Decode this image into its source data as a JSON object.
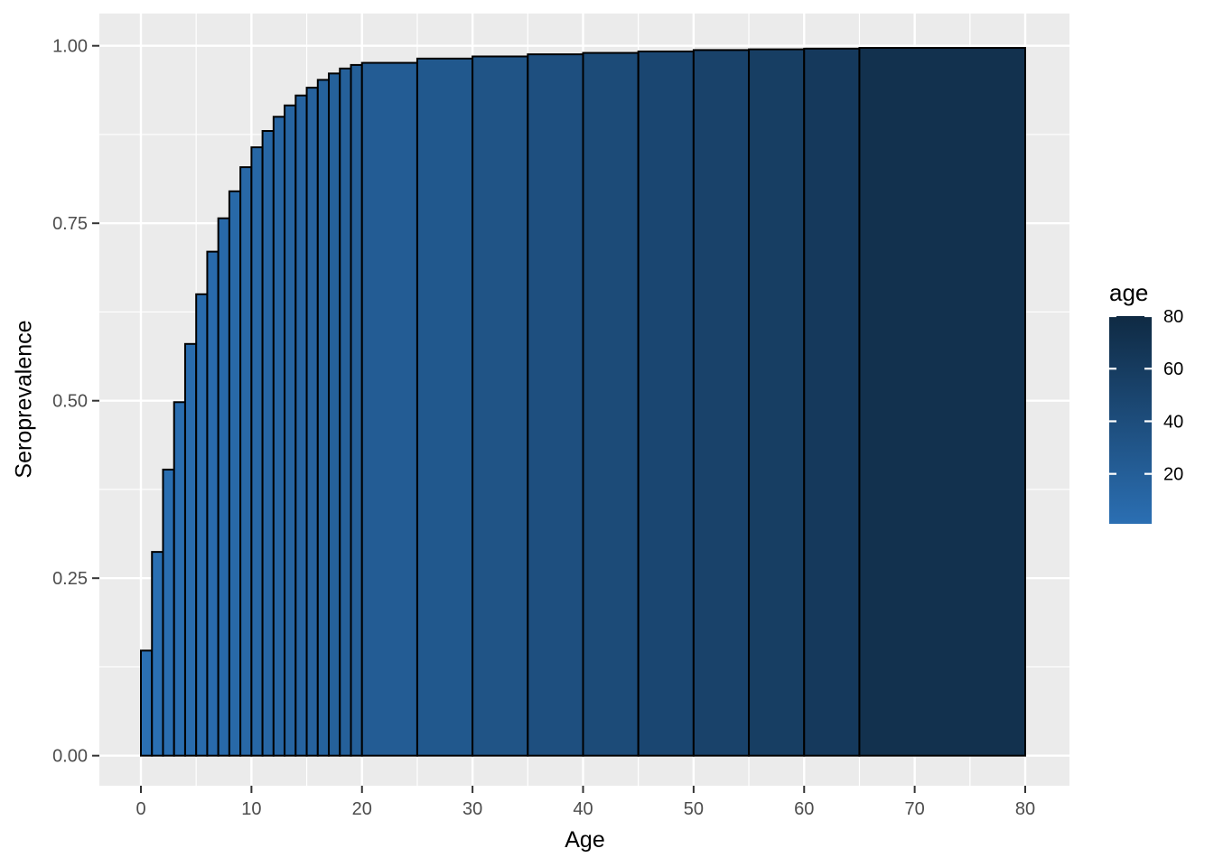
{
  "figure": {
    "background": "#FFFFFF",
    "panel_background": "#EBEBEB",
    "grid_color": "#FFFFFF",
    "bar_stroke_color": "#000000",
    "tick_mark_color": "#333333",
    "tick_label_color": "#4D4D4D",
    "axis_title_color": "#000000"
  },
  "chart_data": {
    "type": "bar",
    "title": "",
    "xlabel": "Age",
    "ylabel": "Seroprevalence",
    "xlim": [
      0,
      80
    ],
    "ylim": [
      0,
      1
    ],
    "grid": true,
    "x_ticks": [
      {
        "value": 0,
        "label": "0"
      },
      {
        "value": 10,
        "label": "10"
      },
      {
        "value": 20,
        "label": "20"
      },
      {
        "value": 30,
        "label": "30"
      },
      {
        "value": 40,
        "label": "40"
      },
      {
        "value": 50,
        "label": "50"
      },
      {
        "value": 60,
        "label": "60"
      },
      {
        "value": 70,
        "label": "70"
      },
      {
        "value": 80,
        "label": "80"
      }
    ],
    "y_ticks": [
      {
        "value": 0,
        "label": "0.00"
      },
      {
        "value": 0.25,
        "label": "0.25"
      },
      {
        "value": 0.5,
        "label": "0.50"
      },
      {
        "value": 0.75,
        "label": "0.75"
      },
      {
        "value": 1,
        "label": "1.00"
      }
    ],
    "x_minor_ticks": [
      5,
      15,
      25,
      35,
      45,
      55,
      65,
      75
    ],
    "y_minor_ticks": [
      0.125,
      0.375,
      0.625,
      0.875
    ],
    "bars": [
      {
        "x0": 0,
        "x1": 1,
        "value": 0.148
      },
      {
        "x0": 1,
        "x1": 2,
        "value": 0.287
      },
      {
        "x0": 2,
        "x1": 3,
        "value": 0.403
      },
      {
        "x0": 3,
        "x1": 4,
        "value": 0.498
      },
      {
        "x0": 4,
        "x1": 5,
        "value": 0.58
      },
      {
        "x0": 5,
        "x1": 6,
        "value": 0.65
      },
      {
        "x0": 6,
        "x1": 7,
        "value": 0.71
      },
      {
        "x0": 7,
        "x1": 8,
        "value": 0.757
      },
      {
        "x0": 8,
        "x1": 9,
        "value": 0.795
      },
      {
        "x0": 9,
        "x1": 10,
        "value": 0.829
      },
      {
        "x0": 10,
        "x1": 11,
        "value": 0.857
      },
      {
        "x0": 11,
        "x1": 12,
        "value": 0.88
      },
      {
        "x0": 12,
        "x1": 13,
        "value": 0.9
      },
      {
        "x0": 13,
        "x1": 14,
        "value": 0.916
      },
      {
        "x0": 14,
        "x1": 15,
        "value": 0.93
      },
      {
        "x0": 15,
        "x1": 16,
        "value": 0.941
      },
      {
        "x0": 16,
        "x1": 17,
        "value": 0.952
      },
      {
        "x0": 17,
        "x1": 18,
        "value": 0.961
      },
      {
        "x0": 18,
        "x1": 19,
        "value": 0.968
      },
      {
        "x0": 19,
        "x1": 20,
        "value": 0.973
      },
      {
        "x0": 20,
        "x1": 25,
        "value": 0.976
      },
      {
        "x0": 25,
        "x1": 30,
        "value": 0.982
      },
      {
        "x0": 30,
        "x1": 35,
        "value": 0.985
      },
      {
        "x0": 35,
        "x1": 40,
        "value": 0.988
      },
      {
        "x0": 40,
        "x1": 45,
        "value": 0.99
      },
      {
        "x0": 45,
        "x1": 50,
        "value": 0.992
      },
      {
        "x0": 50,
        "x1": 55,
        "value": 0.994
      },
      {
        "x0": 55,
        "x1": 60,
        "value": 0.995
      },
      {
        "x0": 60,
        "x1": 65,
        "value": 0.996
      },
      {
        "x0": 65,
        "x1": 80,
        "value": 0.997
      }
    ],
    "fill_scale": {
      "name": "age",
      "domain": [
        0,
        80
      ],
      "low_color": "#2B70B4",
      "high_color": "#0F2A43"
    },
    "legend": {
      "title": "age",
      "position": "right",
      "ticks": [
        {
          "value": 80,
          "label": "80"
        },
        {
          "value": 60,
          "label": "60"
        },
        {
          "value": 40,
          "label": "40"
        },
        {
          "value": 20,
          "label": "20"
        }
      ],
      "range": [
        1,
        80
      ]
    }
  }
}
